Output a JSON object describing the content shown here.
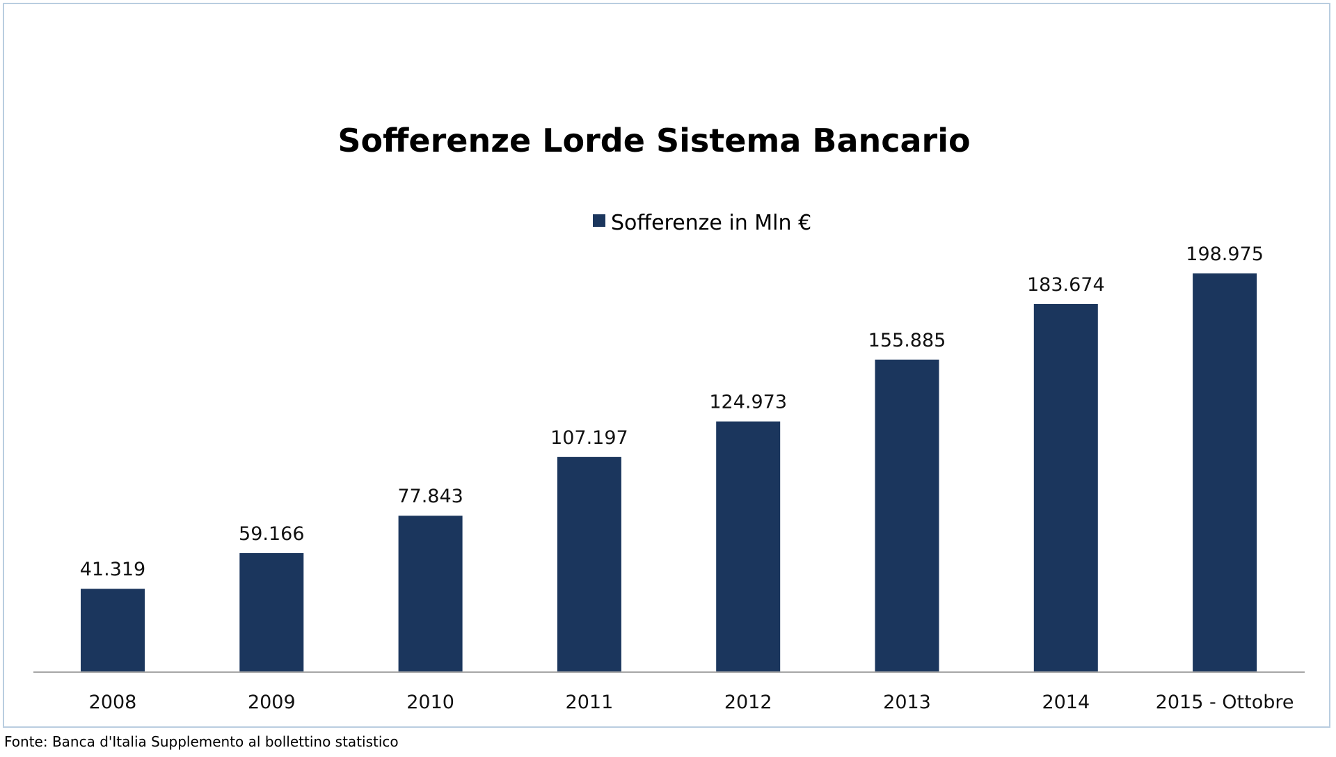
{
  "chart_data": {
    "type": "bar",
    "title": "Sofferenze Lorde Sistema Bancario",
    "categories": [
      "2008",
      "2009",
      "2010",
      "2011",
      "2012",
      "2013",
      "2014",
      "2015 - Ottobre"
    ],
    "series": [
      {
        "name": "Sofferenze in Mln €",
        "values": [
          41319,
          59166,
          77843,
          107197,
          124973,
          155885,
          183674,
          198975
        ],
        "data_labels": [
          "41.319",
          "59.166",
          "77.843",
          "107.197",
          "124.973",
          "155.885",
          "183.674",
          "198.975"
        ],
        "color": "#1b365d"
      }
    ],
    "xlabel": "",
    "ylabel": "",
    "ylim": [
      0,
      200000
    ],
    "grid": false,
    "legend": "top-center",
    "axis_color": "#a6a6a6"
  },
  "source": "Fonte: Banca d'Italia Supplemento al bollettino statistico"
}
